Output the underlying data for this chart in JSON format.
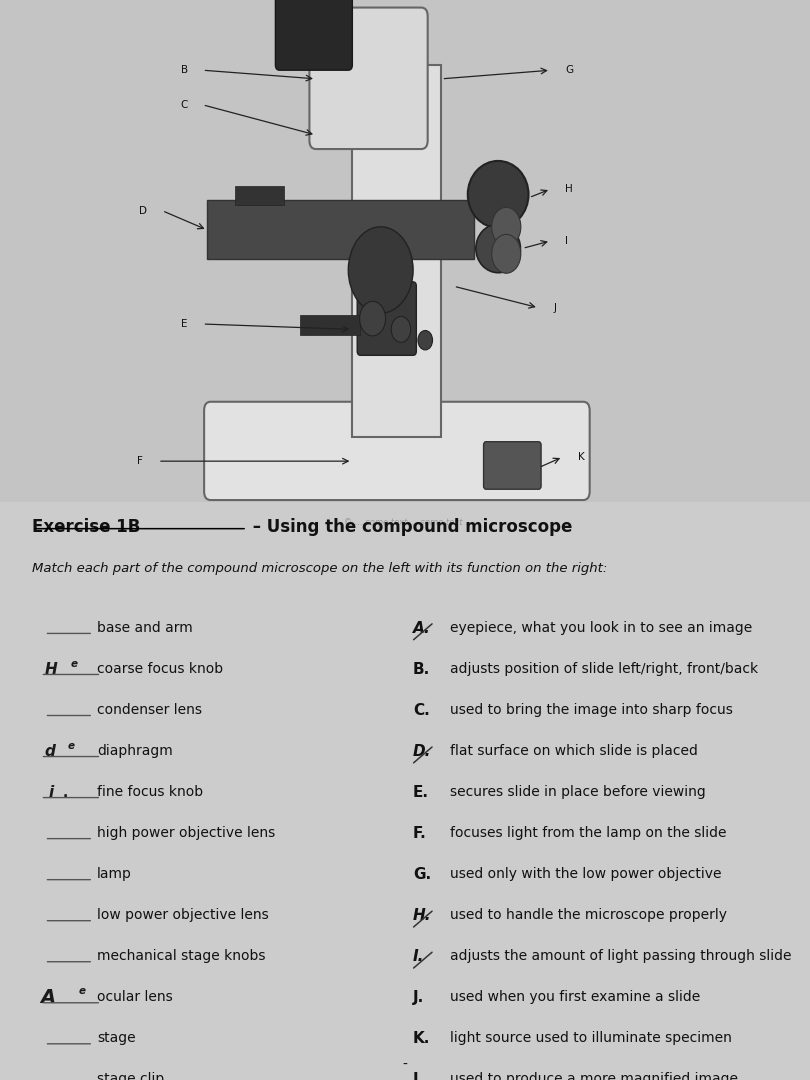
{
  "title_bold": "Exercise 1B",
  "title_rest": " – Using the compound microscope",
  "subtitle": "Match each part of the compound microscope on the left with its function on the right:",
  "bg_color": "#cccccc",
  "left_items": [
    {
      "text": "base and arm",
      "handwritten": null
    },
    {
      "text": "coarse focus knob",
      "handwritten": "He"
    },
    {
      "text": "condenser lens",
      "handwritten": null
    },
    {
      "text": "diaphragm",
      "handwritten": "de"
    },
    {
      "text": "fine focus knob",
      "handwritten": "i."
    },
    {
      "text": "high power objective lens",
      "handwritten": null
    },
    {
      "text": "lamp",
      "handwritten": null
    },
    {
      "text": "low power objective lens",
      "handwritten": null
    },
    {
      "text": "mechanical stage knobs",
      "handwritten": null
    },
    {
      "text": "ocular lens",
      "handwritten": "Ae"
    },
    {
      "text": "stage",
      "handwritten": null
    },
    {
      "text": "stage clip",
      "handwritten": null
    }
  ],
  "right_items": [
    {
      "letter": "A.",
      "crossed": true,
      "text": "eyepiece, what you look in to see an image"
    },
    {
      "letter": "B.",
      "crossed": false,
      "text": "adjusts position of slide left/right, front/back"
    },
    {
      "letter": "C.",
      "crossed": false,
      "text": "used to bring the image into sharp focus"
    },
    {
      "letter": "D.",
      "crossed": true,
      "text": "flat surface on which slide is placed"
    },
    {
      "letter": "E.",
      "crossed": false,
      "text": "secures slide in place before viewing"
    },
    {
      "letter": "F.",
      "crossed": false,
      "text": "focuses light from the lamp on the slide"
    },
    {
      "letter": "G.",
      "crossed": false,
      "text": "used only with the low power objective"
    },
    {
      "letter": "H.",
      "crossed": true,
      "text": "used to handle the microscope properly"
    },
    {
      "letter": "I.",
      "crossed": true,
      "text": "adjusts the amount of light passing through slide"
    },
    {
      "letter": "J.",
      "crossed": false,
      "text": "used when you first examine a slide"
    },
    {
      "letter": "K.",
      "crossed": false,
      "text": "light source used to illuminate specimen"
    },
    {
      "letter": "L.",
      "crossed": false,
      "text": "used to produce a more magnified image"
    }
  ],
  "text_color": "#111111"
}
